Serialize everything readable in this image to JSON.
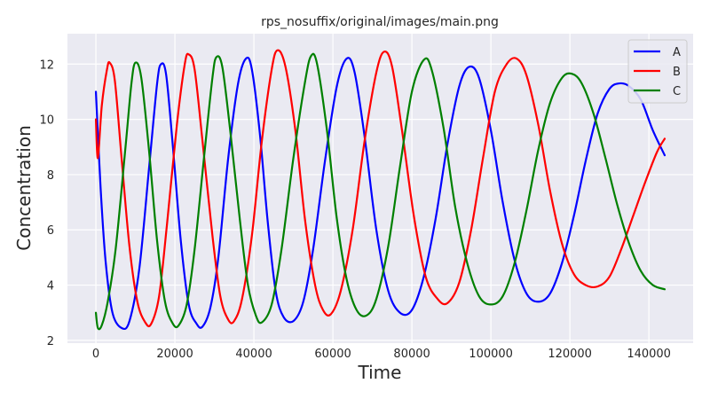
{
  "chart_data": {
    "type": "line",
    "title": "rps_nosuffix/original/images/main.png",
    "xlabel": "Time",
    "ylabel": "Concentration",
    "xlim": [
      -7200,
      151200
    ],
    "ylim": [
      1.9,
      13.1
    ],
    "xticks": [
      0,
      20000,
      40000,
      60000,
      80000,
      100000,
      120000,
      140000
    ],
    "yticks": [
      2,
      4,
      6,
      8,
      10,
      12
    ],
    "grid": true,
    "legend_position": "top-right",
    "background": "#eaeaf2",
    "series": [
      {
        "name": "A",
        "color": "#0000ff",
        "points": [
          [
            0,
            11.0
          ],
          [
            1200,
            7.5
          ],
          [
            2500,
            4.8
          ],
          [
            4200,
            3.0
          ],
          [
            6500,
            2.45
          ],
          [
            8500,
            2.7
          ],
          [
            11000,
            4.6
          ],
          [
            13500,
            8.3
          ],
          [
            15500,
            11.3
          ],
          [
            16500,
            12.0
          ],
          [
            17800,
            11.6
          ],
          [
            19500,
            9.0
          ],
          [
            21500,
            5.6
          ],
          [
            23500,
            3.3
          ],
          [
            25500,
            2.6
          ],
          [
            27000,
            2.5
          ],
          [
            29000,
            3.2
          ],
          [
            31000,
            5.0
          ],
          [
            33500,
            8.6
          ],
          [
            36000,
            11.3
          ],
          [
            38000,
            12.2
          ],
          [
            39500,
            11.8
          ],
          [
            41500,
            9.5
          ],
          [
            43500,
            6.3
          ],
          [
            45500,
            3.8
          ],
          [
            47500,
            2.85
          ],
          [
            50000,
            2.7
          ],
          [
            52500,
            3.4
          ],
          [
            55000,
            5.3
          ],
          [
            58000,
            8.5
          ],
          [
            61000,
            11.2
          ],
          [
            63500,
            12.2
          ],
          [
            65500,
            11.7
          ],
          [
            68000,
            9.4
          ],
          [
            71000,
            6.0
          ],
          [
            74000,
            3.8
          ],
          [
            77000,
            3.0
          ],
          [
            80000,
            3.1
          ],
          [
            83000,
            4.3
          ],
          [
            86000,
            6.4
          ],
          [
            89000,
            9.1
          ],
          [
            92000,
            11.2
          ],
          [
            94500,
            11.9
          ],
          [
            97000,
            11.5
          ],
          [
            100000,
            9.6
          ],
          [
            103000,
            7.0
          ],
          [
            106000,
            4.9
          ],
          [
            109000,
            3.7
          ],
          [
            112000,
            3.4
          ],
          [
            115000,
            3.7
          ],
          [
            118000,
            4.8
          ],
          [
            121000,
            6.5
          ],
          [
            124000,
            8.5
          ],
          [
            127000,
            10.2
          ],
          [
            130000,
            11.1
          ],
          [
            132500,
            11.3
          ],
          [
            135000,
            11.2
          ],
          [
            138000,
            10.7
          ],
          [
            141000,
            9.6
          ],
          [
            144000,
            8.7
          ]
        ]
      },
      {
        "name": "B",
        "color": "#ff0000",
        "points": [
          [
            0,
            10.0
          ],
          [
            500,
            8.6
          ],
          [
            1500,
            10.5
          ],
          [
            2800,
            11.8
          ],
          [
            3500,
            12.05
          ],
          [
            4800,
            11.4
          ],
          [
            6500,
            8.6
          ],
          [
            8500,
            5.4
          ],
          [
            10500,
            3.4
          ],
          [
            12500,
            2.65
          ],
          [
            14000,
            2.6
          ],
          [
            16000,
            3.6
          ],
          [
            18000,
            6.2
          ],
          [
            20500,
            9.8
          ],
          [
            22500,
            12.0
          ],
          [
            23500,
            12.35
          ],
          [
            25000,
            11.8
          ],
          [
            27000,
            9.2
          ],
          [
            29500,
            5.8
          ],
          [
            31500,
            3.6
          ],
          [
            33500,
            2.75
          ],
          [
            35000,
            2.7
          ],
          [
            37000,
            3.5
          ],
          [
            39500,
            5.8
          ],
          [
            42000,
            9.2
          ],
          [
            44500,
            11.8
          ],
          [
            46000,
            12.5
          ],
          [
            48000,
            11.9
          ],
          [
            50500,
            9.6
          ],
          [
            53000,
            6.3
          ],
          [
            55500,
            4.0
          ],
          [
            57500,
            3.1
          ],
          [
            59500,
            2.95
          ],
          [
            62000,
            3.8
          ],
          [
            65000,
            6.0
          ],
          [
            68000,
            9.2
          ],
          [
            71000,
            11.7
          ],
          [
            73000,
            12.45
          ],
          [
            75000,
            11.9
          ],
          [
            77500,
            9.6
          ],
          [
            80500,
            6.5
          ],
          [
            83500,
            4.3
          ],
          [
            86500,
            3.5
          ],
          [
            89000,
            3.35
          ],
          [
            92000,
            4.1
          ],
          [
            95000,
            6.0
          ],
          [
            98000,
            8.6
          ],
          [
            101000,
            11.0
          ],
          [
            104000,
            12.0
          ],
          [
            106500,
            12.2
          ],
          [
            109000,
            11.6
          ],
          [
            112000,
            9.8
          ],
          [
            115000,
            7.4
          ],
          [
            118000,
            5.5
          ],
          [
            121000,
            4.4
          ],
          [
            124000,
            4.0
          ],
          [
            127000,
            3.95
          ],
          [
            130000,
            4.3
          ],
          [
            133000,
            5.3
          ],
          [
            136000,
            6.5
          ],
          [
            139000,
            7.7
          ],
          [
            142000,
            8.8
          ],
          [
            144000,
            9.3
          ]
        ]
      },
      {
        "name": "C",
        "color": "#008000",
        "points": [
          [
            0,
            3.0
          ],
          [
            500,
            2.45
          ],
          [
            1500,
            2.55
          ],
          [
            3000,
            3.4
          ],
          [
            5000,
            5.3
          ],
          [
            7500,
            9.0
          ],
          [
            9000,
            11.3
          ],
          [
            10000,
            12.05
          ],
          [
            11500,
            11.5
          ],
          [
            13500,
            8.8
          ],
          [
            15500,
            5.6
          ],
          [
            17500,
            3.4
          ],
          [
            19500,
            2.6
          ],
          [
            21000,
            2.55
          ],
          [
            23000,
            3.3
          ],
          [
            25000,
            5.3
          ],
          [
            27500,
            8.8
          ],
          [
            29500,
            11.5
          ],
          [
            30500,
            12.25
          ],
          [
            32000,
            11.9
          ],
          [
            34000,
            9.6
          ],
          [
            36500,
            6.3
          ],
          [
            38500,
            4.0
          ],
          [
            40500,
            2.9
          ],
          [
            42000,
            2.65
          ],
          [
            44500,
            3.3
          ],
          [
            47000,
            5.3
          ],
          [
            50000,
            8.6
          ],
          [
            53000,
            11.4
          ],
          [
            54500,
            12.3
          ],
          [
            56000,
            12.0
          ],
          [
            58500,
            9.6
          ],
          [
            61000,
            6.4
          ],
          [
            63500,
            4.2
          ],
          [
            66000,
            3.1
          ],
          [
            68500,
            2.9
          ],
          [
            71000,
            3.5
          ],
          [
            74000,
            5.4
          ],
          [
            77000,
            8.3
          ],
          [
            80000,
            11.0
          ],
          [
            83000,
            12.15
          ],
          [
            85000,
            11.8
          ],
          [
            88000,
            9.7
          ],
          [
            91000,
            6.8
          ],
          [
            94000,
            4.8
          ],
          [
            97000,
            3.6
          ],
          [
            100000,
            3.3
          ],
          [
            103000,
            3.6
          ],
          [
            106000,
            4.8
          ],
          [
            109000,
            6.7
          ],
          [
            112000,
            8.9
          ],
          [
            115000,
            10.6
          ],
          [
            118000,
            11.5
          ],
          [
            120500,
            11.65
          ],
          [
            123000,
            11.3
          ],
          [
            126000,
            10.2
          ],
          [
            129000,
            8.6
          ],
          [
            132000,
            6.9
          ],
          [
            135000,
            5.5
          ],
          [
            138000,
            4.5
          ],
          [
            141000,
            4.0
          ],
          [
            144000,
            3.85
          ]
        ]
      }
    ]
  }
}
